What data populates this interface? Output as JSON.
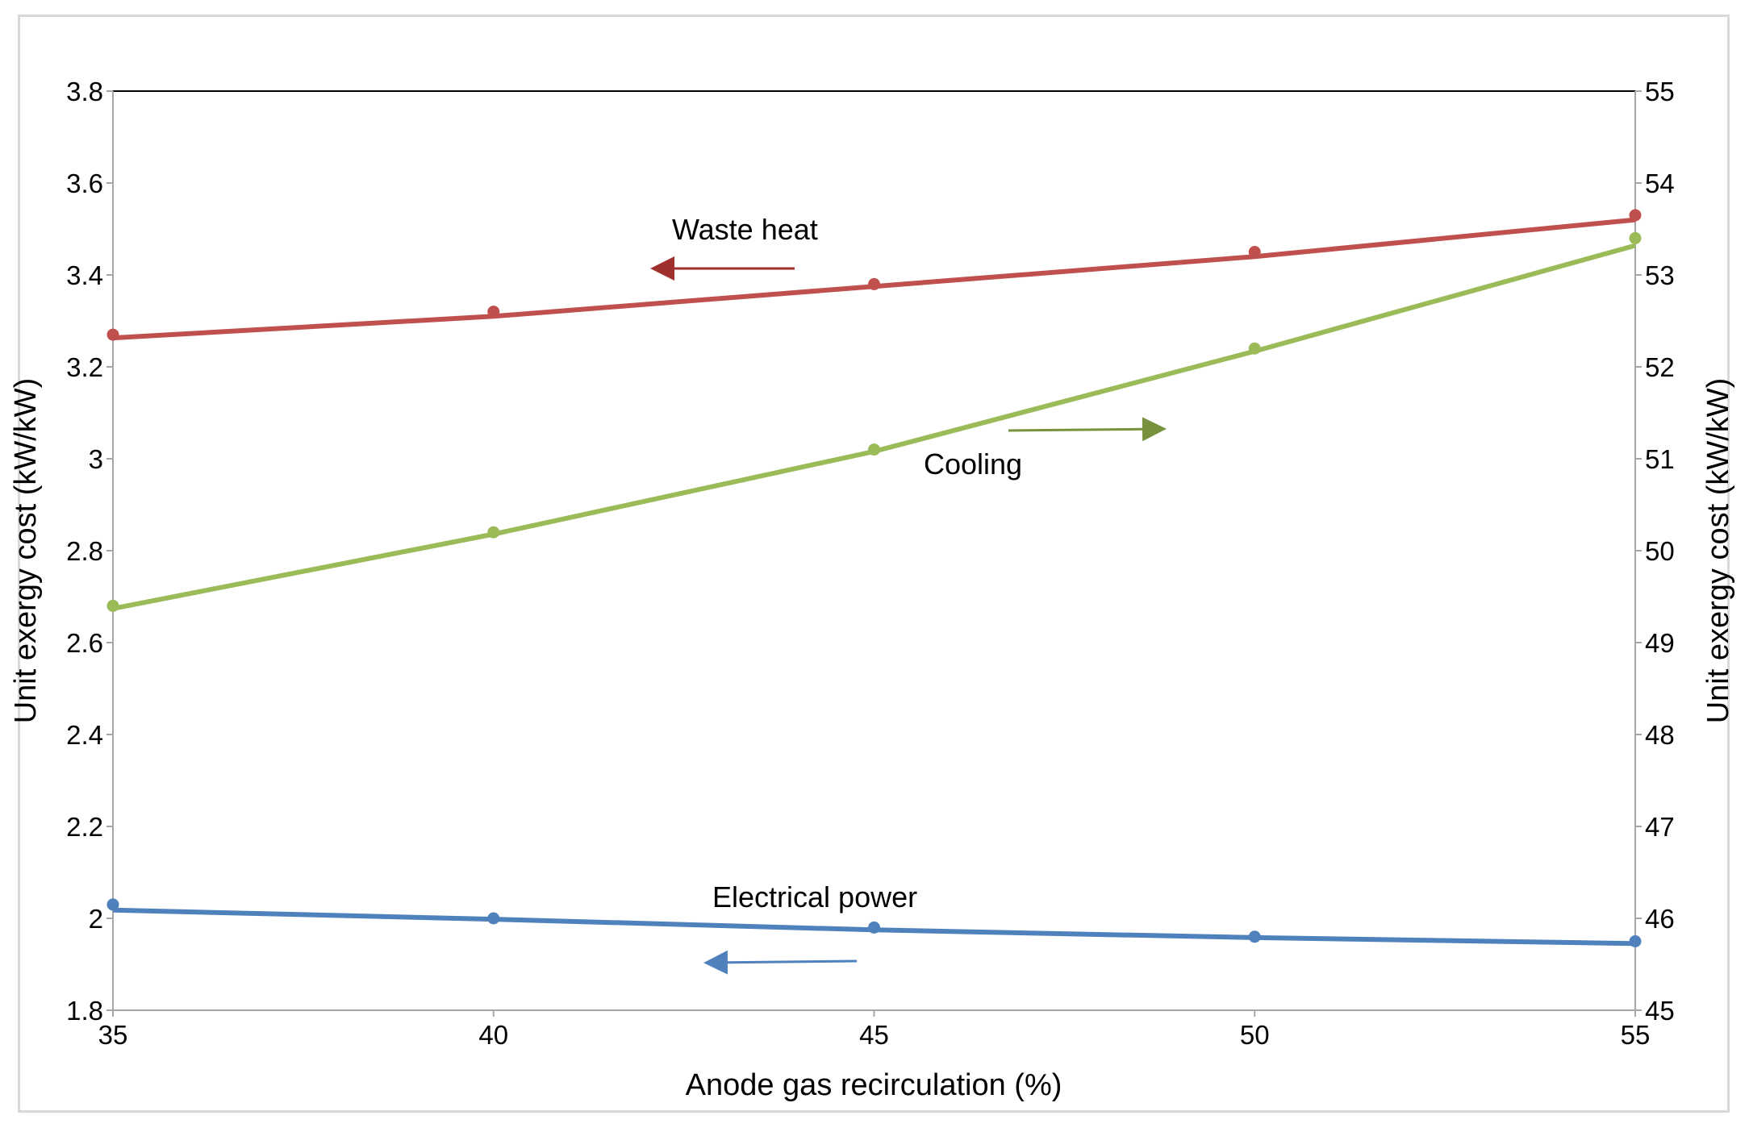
{
  "chart_data": {
    "type": "line",
    "title": "",
    "xlabel": "Anode gas recirculation (%)",
    "ylabel_left": "Unit exergy cost (kW/kW)",
    "ylabel_right": "Unit exergy cost (kW/kW)",
    "x": [
      35,
      40,
      45,
      50,
      55
    ],
    "xlim": [
      35,
      55
    ],
    "x_ticks": [
      "35",
      "40",
      "45",
      "50",
      "55"
    ],
    "ylim_left": [
      1.8,
      3.8
    ],
    "y_ticks_left": [
      "1.8",
      "2",
      "2.2",
      "2.4",
      "2.6",
      "2.8",
      "3",
      "3.2",
      "3.4",
      "3.6",
      "3.8"
    ],
    "ylim_right": [
      45,
      55
    ],
    "y_ticks_right": [
      "45",
      "46",
      "47",
      "48",
      "49",
      "50",
      "51",
      "52",
      "53",
      "54",
      "55"
    ],
    "grid": false,
    "series": [
      {
        "name": "Waste heat",
        "axis": "left",
        "color": "#c0504d",
        "values": [
          3.27,
          3.32,
          3.38,
          3.45,
          3.53
        ],
        "trend": [
          3.263,
          3.31,
          3.375,
          3.44,
          3.52
        ],
        "annotation_arrow": "left"
      },
      {
        "name": "Cooling",
        "axis": "right",
        "color": "#9bbb59",
        "values": [
          49.4,
          50.2,
          51.1,
          52.2,
          53.4
        ],
        "trend": [
          49.37,
          50.18,
          51.08,
          52.17,
          53.32
        ],
        "annotation_arrow": "right"
      },
      {
        "name": "Electrical power",
        "axis": "left",
        "color": "#4f81bd",
        "values": [
          2.03,
          2.0,
          1.98,
          1.96,
          1.95
        ],
        "trend": [
          2.018,
          1.998,
          1.975,
          1.958,
          1.945
        ],
        "annotation_arrow": "left"
      }
    ],
    "annotations": [
      {
        "text": "Waste heat",
        "series": "Waste heat"
      },
      {
        "text": "Cooling",
        "series": "Cooling"
      },
      {
        "text": "Electrical power",
        "series": "Electrical power"
      }
    ]
  }
}
